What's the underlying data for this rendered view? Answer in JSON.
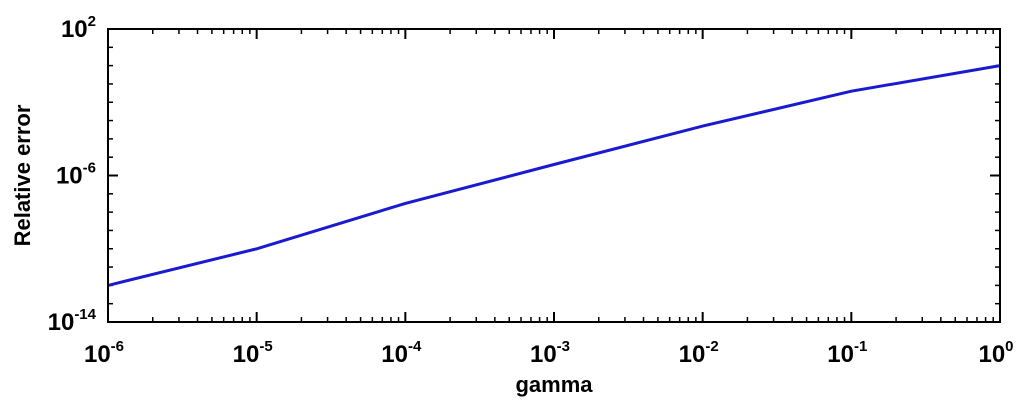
{
  "chart_data": {
    "type": "line",
    "title": "",
    "xlabel": "gamma",
    "ylabel": "Relative error",
    "xscale": "log",
    "yscale": "log",
    "xlim": [
      1e-06,
      1
    ],
    "ylim": [
      1e-14,
      100
    ],
    "grid": false,
    "legend": "none",
    "line_color": "#1a1ad0",
    "x_ticks": [
      {
        "base": "10",
        "exp": "-6",
        "value": 1e-06
      },
      {
        "base": "10",
        "exp": "-5",
        "value": 1e-05
      },
      {
        "base": "10",
        "exp": "-4",
        "value": 0.0001
      },
      {
        "base": "10",
        "exp": "-3",
        "value": 0.001
      },
      {
        "base": "10",
        "exp": "-2",
        "value": 0.01
      },
      {
        "base": "10",
        "exp": "-1",
        "value": 0.1
      },
      {
        "base": "10",
        "exp": "0",
        "value": 1
      }
    ],
    "y_ticks": [
      {
        "base": "10",
        "exp": "-14",
        "value": 1e-14
      },
      {
        "base": "10",
        "exp": "-6",
        "value": 1e-06
      },
      {
        "base": "10",
        "exp": "2",
        "value": 100
      }
    ],
    "series": [
      {
        "x": [
          1e-06,
          1e-05,
          0.0001,
          0.001,
          0.01,
          0.1,
          1
        ],
        "y": [
          1e-12,
          1e-10,
          3e-08,
          4e-06,
          0.0005,
          0.04,
          1
        ]
      }
    ]
  }
}
